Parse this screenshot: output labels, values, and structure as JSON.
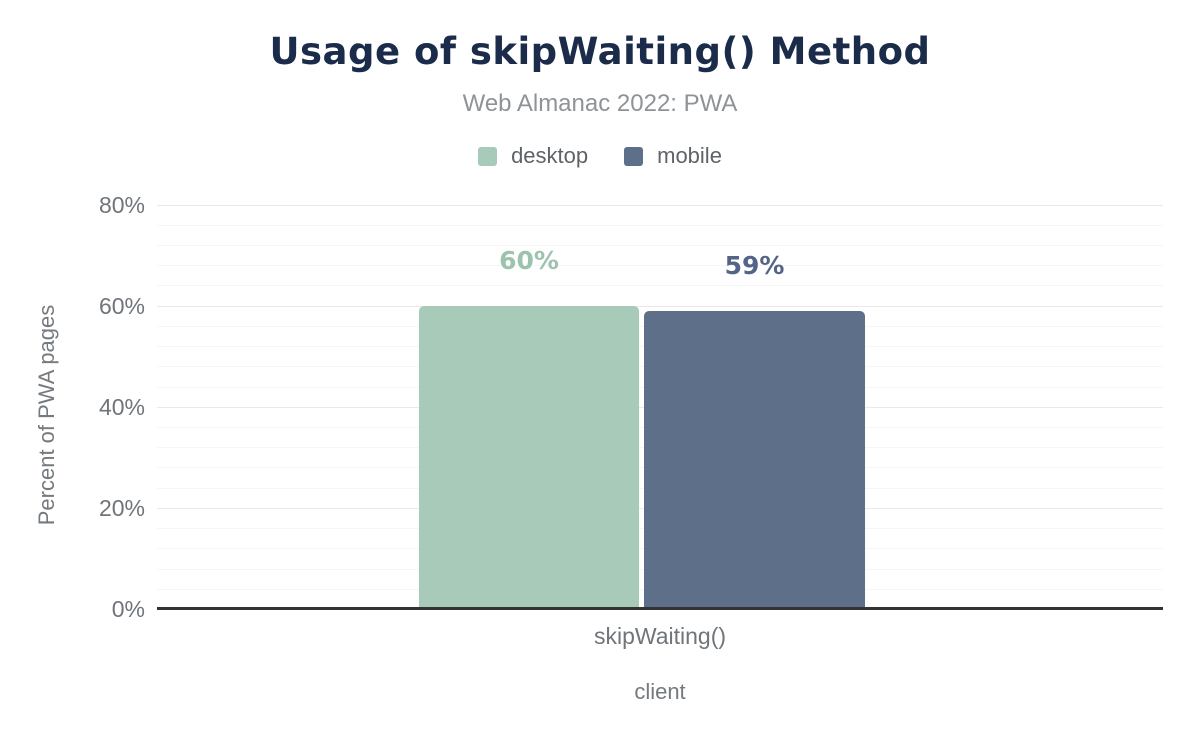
{
  "chart_data": {
    "type": "bar",
    "title": "Usage of skipWaiting() Method",
    "subtitle": "Web Almanac 2022: PWA",
    "categories": [
      "skipWaiting()"
    ],
    "series": [
      {
        "name": "desktop",
        "values": [
          60
        ],
        "data_label": "60%",
        "color": "#a7cbb8",
        "label_color": "#9dc3ae"
      },
      {
        "name": "mobile",
        "values": [
          59
        ],
        "data_label": "59%",
        "color": "#5e7089",
        "label_color": "#536488"
      }
    ],
    "xlabel": "client",
    "ylabel": "Percent of PWA pages",
    "ylim": [
      0,
      80
    ],
    "y_ticks": [
      {
        "label": "0%",
        "value": 0
      },
      {
        "label": "20%",
        "value": 20
      },
      {
        "label": "40%",
        "value": 40
      },
      {
        "label": "60%",
        "value": 60
      },
      {
        "label": "80%",
        "value": 80
      }
    ],
    "grid": {
      "major_step_pct": 20,
      "minor_step_pct": 4
    },
    "legend_position": "top-center",
    "colors": {
      "title": "#1b2b4a",
      "subtitle": "#8e9398",
      "axis_text": "#70757a",
      "legend_text": "#5f6368",
      "axis_line": "#333333",
      "grid_major": "#e9e9e9",
      "grid_minor": "#f5f5f5",
      "background": "#ffffff"
    }
  }
}
